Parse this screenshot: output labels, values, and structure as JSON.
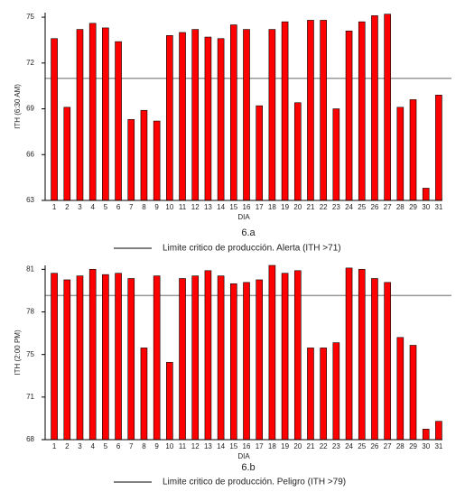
{
  "chart_data": [
    {
      "type": "bar",
      "caption": "6.a",
      "ylabel": "ITH (6:30 AM)",
      "xlabel": "DIA",
      "categories": [
        "1",
        "2",
        "3",
        "4",
        "5",
        "6",
        "7",
        "8",
        "9",
        "10",
        "11",
        "12",
        "13",
        "14",
        "15",
        "16",
        "17",
        "18",
        "19",
        "20",
        "21",
        "22",
        "23",
        "24",
        "25",
        "26",
        "27",
        "28",
        "29",
        "30",
        "31"
      ],
      "values": [
        73.6,
        69.1,
        74.2,
        74.6,
        74.3,
        73.4,
        68.3,
        68.9,
        68.2,
        73.8,
        74.0,
        74.2,
        73.7,
        73.6,
        74.5,
        74.2,
        69.2,
        74.2,
        74.7,
        69.4,
        74.8,
        74.8,
        69.0,
        74.1,
        74.7,
        75.1,
        75.2,
        69.1,
        69.6,
        63.8,
        69.9
      ],
      "color": "#ff0000",
      "ylim": [
        63,
        75.3
      ],
      "yticks": [
        63,
        66,
        69,
        72,
        75
      ],
      "threshold": 71,
      "threshold_color": "#999999",
      "legend": "Limite critico de producción. Alerta (ITH >71)"
    },
    {
      "type": "bar",
      "caption": "6.b",
      "ylabel": "ITH (2:00 PM)",
      "xlabel": "DIA",
      "categories": [
        "1",
        "2",
        "3",
        "4",
        "5",
        "6",
        "7",
        "8",
        "9",
        "10",
        "11",
        "12",
        "13",
        "14",
        "15",
        "16",
        "17",
        "18",
        "19",
        "20",
        "21",
        "22",
        "23",
        "24",
        "25",
        "26",
        "27",
        "28",
        "29",
        "30",
        "31"
      ],
      "values": [
        80.7,
        80.2,
        80.5,
        81.0,
        80.6,
        80.7,
        80.3,
        75.0,
        80.5,
        73.9,
        80.3,
        80.5,
        80.9,
        80.5,
        79.9,
        80.0,
        80.2,
        81.3,
        80.7,
        80.9,
        75.0,
        75.0,
        75.4,
        81.1,
        81.0,
        80.3,
        80.0,
        75.8,
        75.2,
        68.8,
        69.4
      ],
      "color": "#ff0000",
      "ylim": [
        68,
        81.3
      ],
      "yticks": [
        68,
        {
          "value": 71.25,
          "label": "71"
        },
        {
          "value": 74.5,
          "label": "75"
        },
        {
          "value": 77.75,
          "label": "78"
        },
        81
      ],
      "threshold": 79,
      "threshold_color": "#999999",
      "legend": "Limite critico de producción. Peligro (ITH >79)"
    }
  ]
}
